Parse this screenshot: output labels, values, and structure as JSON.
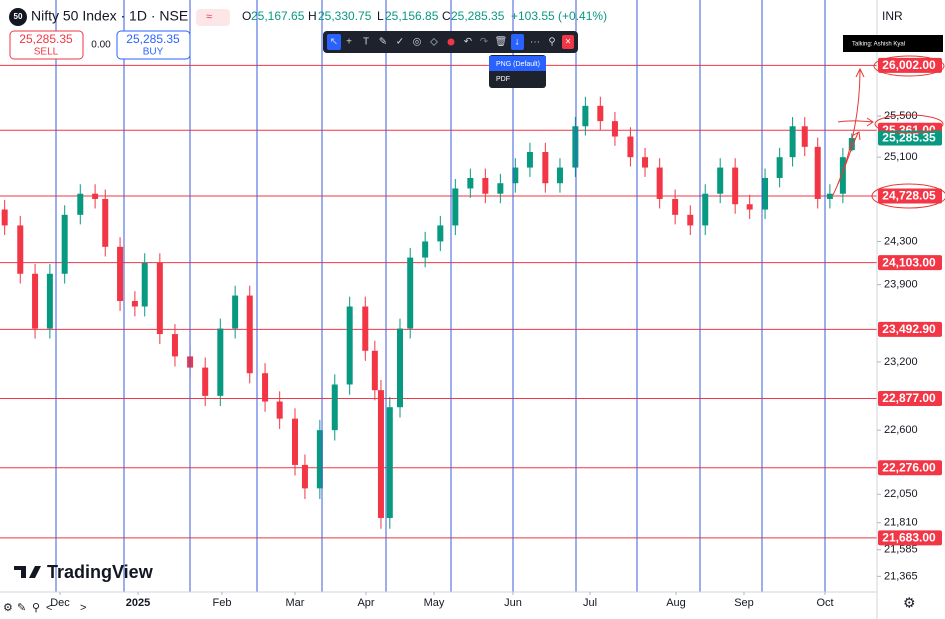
{
  "header": {
    "badge": "50",
    "symbol": "Nifty 50 Index · 1D · NSE",
    "o_label": "O",
    "open": "25,167.65",
    "h_label": "H",
    "high": "25,330.75",
    "l_label": "L",
    "low": "25,156.85",
    "c_label": "C",
    "close": "25,285.35",
    "change": "+103.55 (+0.41%)"
  },
  "trade": {
    "sell_price": "25,285.35",
    "sell_label": "SELL",
    "spread": "0.00",
    "buy_price": "25,285.35",
    "buy_label": "BUY"
  },
  "currency": "INR",
  "export_menu": [
    "PNG (Default)",
    "PDF"
  ],
  "tooltip": "Talking: Ashish Kyal",
  "logo": "TradingView",
  "chart_data": {
    "type": "candlestick",
    "x": [
      -0.71,
      -0.51,
      -0.32,
      -0.13,
      0.06,
      0.26,
      0.45,
      0.58,
      0.77,
      0.96,
      1.08,
      1.26,
      1.44,
      1.62,
      1.8,
      1.98,
      2.18,
      2.38,
      2.59,
      2.79,
      3.0,
      3.14,
      3.35,
      3.56,
      3.77,
      3.99,
      4.13,
      4.22,
      4.35,
      4.5,
      4.65,
      4.87,
      5.08,
      5.27,
      5.46,
      5.65,
      5.84,
      6.03,
      6.22,
      6.42,
      6.61,
      6.81,
      6.94,
      7.12,
      7.29,
      7.47,
      7.64,
      7.81,
      7.99,
      8.21,
      8.43,
      8.65,
      8.87,
      9.07,
      9.26,
      9.44,
      9.6,
      9.75,
      9.91,
      10.06,
      10.22,
      10.33
    ],
    "open": [
      24600,
      24450,
      24000,
      23500,
      24000,
      24550,
      24750,
      24700,
      24250,
      23750,
      23700,
      24100,
      23450,
      23250,
      23150,
      22900,
      23500,
      23800,
      23100,
      22850,
      22700,
      22300,
      22100,
      22600,
      23000,
      23700,
      23300,
      22950,
      21850,
      22800,
      23500,
      24150,
      24300,
      24450,
      24800,
      24900,
      24750,
      24850,
      25000,
      25150,
      24850,
      25000,
      25400,
      25600,
      25450,
      25300,
      25100,
      25000,
      24700,
      24550,
      24450,
      24750,
      25000,
      24650,
      24600,
      24900,
      25100,
      25400,
      25200,
      24700,
      24750,
      25167.65
    ],
    "high": [
      24690,
      24540,
      24090,
      24090,
      24640,
      24840,
      24840,
      24790,
      24340,
      23840,
      24190,
      24190,
      23540,
      23340,
      23240,
      23590,
      23890,
      23890,
      23190,
      22940,
      22790,
      22390,
      22690,
      23090,
      23790,
      23790,
      23390,
      23040,
      22890,
      23590,
      24240,
      24390,
      24540,
      24890,
      24990,
      24990,
      24940,
      25090,
      25240,
      25240,
      25090,
      25490,
      25690,
      25690,
      25540,
      25390,
      25190,
      25090,
      24790,
      24640,
      24840,
      25090,
      25090,
      24740,
      24990,
      25190,
      25490,
      25490,
      25290,
      24840,
      25190,
      25330.75
    ],
    "low": [
      24360,
      23910,
      23410,
      23410,
      23910,
      24460,
      24610,
      24160,
      23660,
      23610,
      23610,
      23360,
      23160,
      23060,
      22810,
      22810,
      23410,
      23010,
      22760,
      22610,
      22210,
      22010,
      22010,
      22510,
      22910,
      23210,
      22860,
      21760,
      21760,
      22710,
      23410,
      24060,
      24210,
      24360,
      24710,
      24660,
      24660,
      24760,
      24910,
      24760,
      24760,
      24910,
      25310,
      25360,
      25210,
      25010,
      24910,
      24610,
      24460,
      24360,
      24360,
      24660,
      24560,
      24510,
      24510,
      24810,
      25010,
      25110,
      24610,
      24610,
      24660,
      25156.85
    ],
    "close": [
      24450,
      24000,
      23500,
      24000,
      24550,
      24750,
      24700,
      24250,
      23750,
      23700,
      24100,
      23450,
      23250,
      23150,
      22900,
      23500,
      23800,
      23100,
      22850,
      22700,
      22300,
      22100,
      22600,
      23000,
      23700,
      23300,
      22950,
      21850,
      22800,
      23500,
      24150,
      24300,
      24450,
      24800,
      24900,
      24750,
      24850,
      25000,
      25150,
      24850,
      25000,
      25400,
      25600,
      25450,
      25300,
      25100,
      25000,
      24700,
      24550,
      24450,
      24750,
      25000,
      24650,
      24600,
      24900,
      25100,
      25400,
      25200,
      24700,
      24750,
      25100,
      25285.35
    ],
    "xlim": [
      -0.77,
      10.64
    ],
    "xticks": [
      {
        "value": 0,
        "label": "Dec"
      },
      {
        "value": 1,
        "label": "2025"
      },
      {
        "value": 2,
        "label": "Feb"
      },
      {
        "value": 3,
        "label": "Mar"
      },
      {
        "value": 4,
        "label": "Apr"
      },
      {
        "value": 5,
        "label": "May"
      },
      {
        "value": 6,
        "label": "Jun"
      },
      {
        "value": 7,
        "label": "Jul"
      },
      {
        "value": 8,
        "label": "Aug"
      },
      {
        "value": 9,
        "label": "Sep"
      },
      {
        "value": 10,
        "label": "Oct"
      }
    ],
    "ylim": [
      21237,
      26663
    ],
    "log_scale": true,
    "yticks": [
      {
        "value": 25500,
        "label": "25,500"
      },
      {
        "value": 25100,
        "label": "25,100"
      },
      {
        "value": 24300,
        "label": "24,300"
      },
      {
        "value": 23900,
        "label": "23,900"
      },
      {
        "value": 23200,
        "label": "23,200"
      },
      {
        "value": 22600,
        "label": "22,600"
      },
      {
        "value": 22050,
        "label": "22,050"
      },
      {
        "value": 21810,
        "label": "21,810"
      },
      {
        "value": 21585,
        "label": "21,585"
      },
      {
        "value": 21365,
        "label": "21,365"
      }
    ],
    "levels": [
      {
        "value": 26002,
        "label": "26,002.00"
      },
      {
        "value": 25361,
        "label": "25,361.00"
      },
      {
        "value": 24728.05,
        "label": "24,728.05"
      },
      {
        "value": 24103,
        "label": "24,103.00"
      },
      {
        "value": 23492.9,
        "label": "23,492.90"
      },
      {
        "value": 22877,
        "label": "22,877.00"
      },
      {
        "value": 22276,
        "label": "22,276.00"
      },
      {
        "value": 21683,
        "label": "21,683.00"
      }
    ],
    "last_price": {
      "value": 25285.35,
      "label": "25,285.35"
    },
    "up_color": "#089981",
    "down_color": "#f23645",
    "level_color": "#f23645",
    "last_color": "#089981"
  }
}
